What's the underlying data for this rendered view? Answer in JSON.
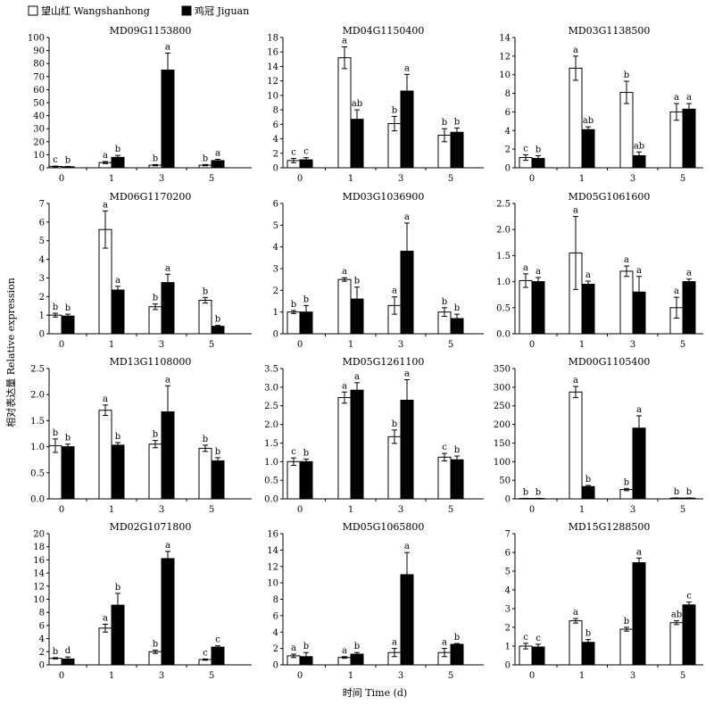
{
  "figure": {
    "ylabel": "相对表达量 Relative expression",
    "xlabel": "时间 Time (d)"
  },
  "legend": {
    "items": [
      {
        "label": "望山红 Wangshanhong",
        "color": "#ffffff"
      },
      {
        "label": "鸡冠 Jiguan",
        "color": "#000000"
      }
    ]
  },
  "chart_data": [
    {
      "type": "bar",
      "title": "MD09G1153800",
      "categories": [
        "0",
        "1",
        "3",
        "5"
      ],
      "ylim": [
        0,
        100
      ],
      "yticks": [
        0,
        10,
        20,
        30,
        40,
        50,
        60,
        70,
        80,
        90,
        100
      ],
      "series": [
        {
          "name": "望山红 Wangshanhong",
          "values": [
            1,
            4,
            2,
            2
          ],
          "errors": [
            0.3,
            0.8,
            0.5,
            0.5
          ],
          "labels": [
            "c",
            "a",
            "b",
            "b"
          ]
        },
        {
          "name": "鸡冠 Jiguan",
          "values": [
            0.8,
            8,
            75,
            5.5
          ],
          "errors": [
            0.2,
            1.5,
            13,
            1
          ],
          "labels": [
            "b",
            "b",
            "a",
            "a"
          ]
        }
      ]
    },
    {
      "type": "bar",
      "title": "MD04G1150400",
      "categories": [
        "0",
        "1",
        "3",
        "5"
      ],
      "ylim": [
        0,
        18
      ],
      "yticks": [
        0,
        2,
        4,
        6,
        8,
        10,
        12,
        14,
        16,
        18
      ],
      "series": [
        {
          "name": "望山红 Wangshanhong",
          "values": [
            1,
            15.2,
            6.1,
            4.5
          ],
          "errors": [
            0.3,
            1.5,
            1.0,
            0.9
          ],
          "labels": [
            "c",
            "a",
            "b",
            "b"
          ]
        },
        {
          "name": "鸡冠 Jiguan",
          "values": [
            1.1,
            6.7,
            10.6,
            4.9
          ],
          "errors": [
            0.3,
            1.3,
            2.3,
            0.6
          ],
          "labels": [
            "c",
            "ab",
            "a",
            "b"
          ]
        }
      ]
    },
    {
      "type": "bar",
      "title": "MD03G1138500",
      "categories": [
        "0",
        "1",
        "3",
        "5"
      ],
      "ylim": [
        0,
        14
      ],
      "yticks": [
        0,
        2,
        4,
        6,
        8,
        10,
        12,
        14
      ],
      "series": [
        {
          "name": "望山红 Wangshanhong",
          "values": [
            1.1,
            10.7,
            8.1,
            6.0
          ],
          "errors": [
            0.3,
            1.3,
            1.2,
            0.9
          ],
          "labels": [
            "c",
            "a",
            "b",
            "a"
          ]
        },
        {
          "name": "鸡冠 Jiguan",
          "values": [
            1,
            4.1,
            1.3,
            6.3
          ],
          "errors": [
            0.3,
            0.3,
            0.4,
            0.6
          ],
          "labels": [
            "b",
            "ab",
            "ab",
            "a"
          ]
        }
      ]
    },
    {
      "type": "bar",
      "title": "MD06G1170200",
      "categories": [
        "0",
        "1",
        "3",
        "5"
      ],
      "ylim": [
        0,
        7
      ],
      "yticks": [
        0,
        1,
        2,
        3,
        4,
        5,
        6,
        7
      ],
      "series": [
        {
          "name": "望山红 Wangshanhong",
          "values": [
            1,
            5.6,
            1.45,
            1.8
          ],
          "errors": [
            0.1,
            1.0,
            0.15,
            0.15
          ],
          "labels": [
            "b",
            "a",
            "b",
            "b"
          ]
        },
        {
          "name": "鸡冠 Jiguan",
          "values": [
            0.95,
            2.35,
            2.75,
            0.4
          ],
          "errors": [
            0.1,
            0.2,
            0.45,
            0.05
          ],
          "labels": [
            "b",
            "a",
            "a",
            "b"
          ]
        }
      ]
    },
    {
      "type": "bar",
      "title": "MD03G1036900",
      "categories": [
        "0",
        "1",
        "3",
        "5"
      ],
      "ylim": [
        0,
        6
      ],
      "yticks": [
        0,
        1,
        2,
        3,
        4,
        5,
        6
      ],
      "series": [
        {
          "name": "望山红 Wangshanhong",
          "values": [
            1,
            2.5,
            1.3,
            1.0
          ],
          "errors": [
            0.07,
            0.08,
            0.4,
            0.2
          ],
          "labels": [
            "b",
            "a",
            "a",
            "b"
          ]
        },
        {
          "name": "鸡冠 Jiguan",
          "values": [
            1,
            1.6,
            3.8,
            0.7
          ],
          "errors": [
            0.3,
            0.55,
            1.3,
            0.2
          ],
          "labels": [
            "b",
            "b",
            "a",
            "b"
          ]
        }
      ]
    },
    {
      "type": "bar",
      "title": "MD05G1061600",
      "categories": [
        "0",
        "1",
        "3",
        "5"
      ],
      "ylim": [
        0,
        2.5
      ],
      "yticks": [
        0,
        0.5,
        1.0,
        1.5,
        2.0,
        2.5
      ],
      "series": [
        {
          "name": "望山红 Wangshanhong",
          "values": [
            1.02,
            1.55,
            1.2,
            0.5
          ],
          "errors": [
            0.13,
            0.7,
            0.1,
            0.2
          ],
          "labels": [
            "a",
            "a",
            "a",
            "a"
          ]
        },
        {
          "name": "鸡冠 Jiguan",
          "values": [
            1,
            0.95,
            0.8,
            1.0
          ],
          "errors": [
            0.08,
            0.06,
            0.3,
            0.05
          ],
          "labels": [
            "a",
            "a",
            "a",
            "a"
          ]
        }
      ]
    },
    {
      "type": "bar",
      "title": "MD13G1108000",
      "categories": [
        "0",
        "1",
        "3",
        "5"
      ],
      "ylim": [
        0,
        2.5
      ],
      "yticks": [
        0,
        0.5,
        1.0,
        1.5,
        2.0,
        2.5
      ],
      "series": [
        {
          "name": "望山红 Wangshanhong",
          "values": [
            1.02,
            1.7,
            1.05,
            0.97
          ],
          "errors": [
            0.13,
            0.1,
            0.07,
            0.06
          ],
          "labels": [
            "b",
            "a",
            "b",
            "b"
          ]
        },
        {
          "name": "鸡冠 Jiguan",
          "values": [
            1,
            1.03,
            1.67,
            0.73
          ],
          "errors": [
            0.05,
            0.05,
            0.5,
            0.06
          ],
          "labels": [
            "b",
            "b",
            "a",
            "b"
          ]
        }
      ]
    },
    {
      "type": "bar",
      "title": "MD05G1261100",
      "categories": [
        "0",
        "1",
        "3",
        "5"
      ],
      "ylim": [
        0,
        3.5
      ],
      "yticks": [
        0,
        0.5,
        1.0,
        1.5,
        2.0,
        2.5,
        3.0,
        3.5
      ],
      "series": [
        {
          "name": "望山红 Wangshanhong",
          "values": [
            1,
            2.72,
            1.67,
            1.12
          ],
          "errors": [
            0.1,
            0.15,
            0.18,
            0.1
          ],
          "labels": [
            "c",
            "a",
            "b",
            "c"
          ]
        },
        {
          "name": "鸡冠 Jiguan",
          "values": [
            1,
            2.92,
            2.65,
            1.05
          ],
          "errors": [
            0.07,
            0.2,
            0.55,
            0.1
          ],
          "labels": [
            "b",
            "a",
            "a",
            "b"
          ]
        }
      ]
    },
    {
      "type": "bar",
      "title": "MD00G1105400",
      "categories": [
        "0",
        "1",
        "3",
        "5"
      ],
      "ylim": [
        0,
        350
      ],
      "yticks": [
        0,
        50,
        100,
        150,
        200,
        250,
        300,
        350
      ],
      "series": [
        {
          "name": "望山红 Wangshanhong",
          "values": [
            1,
            287,
            25,
            2
          ],
          "errors": [
            0.5,
            15,
            3,
            0.5
          ],
          "labels": [
            "b",
            "a",
            "b",
            "b"
          ]
        },
        {
          "name": "鸡冠 Jiguan",
          "values": [
            1,
            33,
            190,
            2
          ],
          "errors": [
            0.5,
            3,
            33,
            0.5
          ],
          "labels": [
            "b",
            "b",
            "a",
            "b"
          ]
        }
      ]
    },
    {
      "type": "bar",
      "title": "MD02G1071800",
      "categories": [
        "0",
        "1",
        "3",
        "5"
      ],
      "ylim": [
        0,
        20
      ],
      "yticks": [
        0,
        2,
        4,
        6,
        8,
        10,
        12,
        14,
        16,
        18,
        20
      ],
      "series": [
        {
          "name": "望山红 Wangshanhong",
          "values": [
            1,
            5.6,
            2,
            0.8
          ],
          "errors": [
            0.1,
            0.6,
            0.25,
            0.1
          ],
          "labels": [
            "b",
            "a",
            "b",
            "c"
          ]
        },
        {
          "name": "鸡冠 Jiguan",
          "values": [
            0.9,
            9.1,
            16.2,
            2.7
          ],
          "errors": [
            0.3,
            1.8,
            1.1,
            0.2
          ],
          "labels": [
            "d",
            "b",
            "a",
            "c"
          ]
        }
      ]
    },
    {
      "type": "bar",
      "title": "MD05G1065800",
      "categories": [
        "0",
        "1",
        "3",
        "5"
      ],
      "ylim": [
        0,
        16
      ],
      "yticks": [
        0,
        2,
        4,
        6,
        8,
        10,
        12,
        14,
        16
      ],
      "series": [
        {
          "name": "望山红 Wangshanhong",
          "values": [
            1.1,
            0.9,
            1.5,
            1.5
          ],
          "errors": [
            0.2,
            0.1,
            0.5,
            0.5
          ],
          "labels": [
            "a",
            "a",
            "a",
            "a"
          ]
        },
        {
          "name": "鸡冠 Jiguan",
          "values": [
            1,
            1.3,
            11,
            2.5
          ],
          "errors": [
            0.5,
            0.2,
            2.7,
            0.1
          ],
          "labels": [
            "b",
            "b",
            "a",
            "b"
          ]
        }
      ]
    },
    {
      "type": "bar",
      "title": "MD15G1288500",
      "categories": [
        "0",
        "1",
        "3",
        "5"
      ],
      "ylim": [
        0,
        7
      ],
      "yticks": [
        0,
        1,
        2,
        3,
        4,
        5,
        6,
        7
      ],
      "series": [
        {
          "name": "望山红 Wangshanhong",
          "values": [
            1,
            2.35,
            1.9,
            2.25
          ],
          "errors": [
            0.15,
            0.12,
            0.1,
            0.1
          ],
          "labels": [
            "c",
            "a",
            "b",
            "ab"
          ]
        },
        {
          "name": "鸡冠 Jiguan",
          "values": [
            0.95,
            1.2,
            5.45,
            3.2
          ],
          "errors": [
            0.15,
            0.15,
            0.25,
            0.15
          ],
          "labels": [
            "c",
            "b",
            "a",
            "c"
          ]
        }
      ]
    }
  ]
}
